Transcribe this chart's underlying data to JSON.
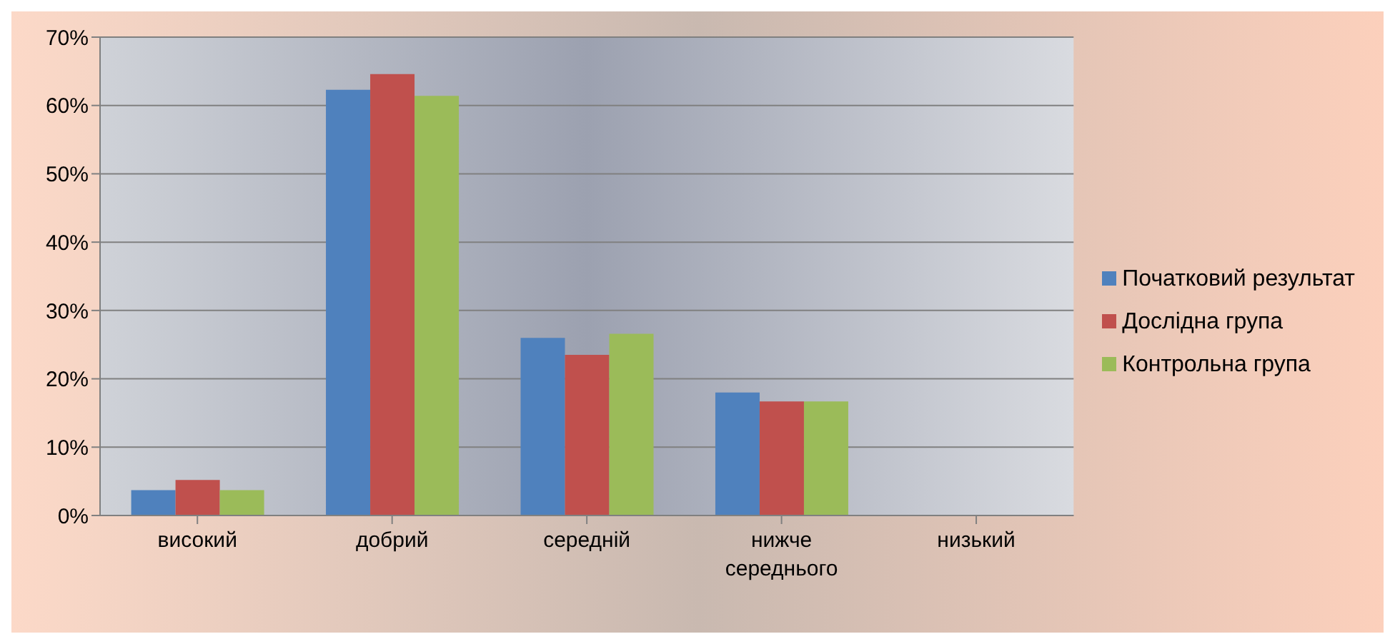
{
  "chart_data": {
    "type": "bar",
    "categories": [
      "високий",
      "добрий",
      "середній",
      "нижче середнього",
      "низький"
    ],
    "series": [
      {
        "name": "Початковий результат",
        "color": "#4f81bd",
        "values": [
          3.7,
          62.3,
          26.0,
          18.0,
          0
        ]
      },
      {
        "name": "Дослідна група",
        "color": "#c0504d",
        "values": [
          5.2,
          64.6,
          23.5,
          16.7,
          0
        ]
      },
      {
        "name": "Контрольна група",
        "color": "#9bbb59",
        "values": [
          3.7,
          61.4,
          26.6,
          16.7,
          0
        ]
      }
    ],
    "ylim": [
      0,
      70
    ],
    "yticks": [
      {
        "value": 0,
        "label": "0%"
      },
      {
        "value": 10,
        "label": "10%"
      },
      {
        "value": 20,
        "label": "20%"
      },
      {
        "value": 30,
        "label": "30%"
      },
      {
        "value": 40,
        "label": "40%"
      },
      {
        "value": 50,
        "label": "50%"
      },
      {
        "value": 60,
        "label": "60%"
      },
      {
        "value": 70,
        "label": "70%"
      }
    ],
    "grid": "y",
    "legend": "right"
  }
}
